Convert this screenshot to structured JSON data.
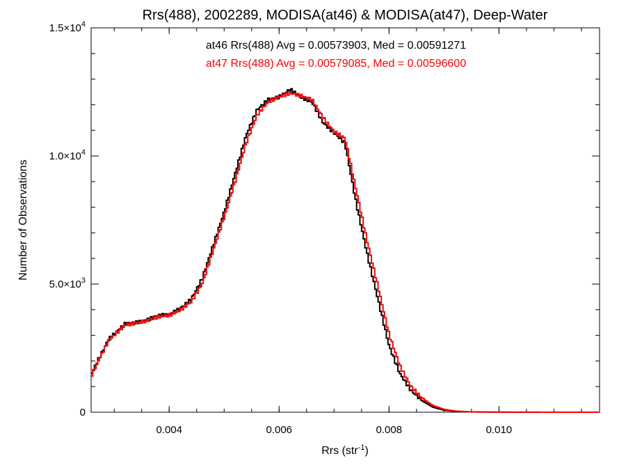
{
  "chart_data": {
    "type": "line",
    "title": "Rrs(488), 2002289, MODISA(at46) & MODISA(at47), Deep-Water",
    "xlabel": "Rrs (str",
    "xlabel_sup": "-1",
    "xlabel_suffix": ")",
    "ylabel": "Number of Observations",
    "xlim": [
      0.00258,
      0.01183
    ],
    "ylim": [
      0,
      15000
    ],
    "grid": false,
    "legend_position": "top-center",
    "x_ticks": [
      {
        "value": 0.004,
        "label": "0.004"
      },
      {
        "value": 0.006,
        "label": "0.006"
      },
      {
        "value": 0.008,
        "label": "0.008"
      },
      {
        "value": 0.01,
        "label": "0.010"
      }
    ],
    "y_ticks": [
      {
        "value": 0,
        "mantissa": "0",
        "exp": ""
      },
      {
        "value": 5000,
        "mantissa": "5.0×10",
        "exp": "3"
      },
      {
        "value": 10000,
        "mantissa": "1.0×10",
        "exp": "4"
      },
      {
        "value": 15000,
        "mantissa": "1.5×10",
        "exp": "4"
      }
    ],
    "series": [
      {
        "name": "at46",
        "color": "#000000",
        "stats": "at46 Rrs(488) Avg = 0.00573903, Med = 0.00591271",
        "points": [
          [
            0.00258,
            1450
          ],
          [
            0.0027,
            2000
          ],
          [
            0.0029,
            2850
          ],
          [
            0.0031,
            3250
          ],
          [
            0.0032,
            3450
          ],
          [
            0.0034,
            3500
          ],
          [
            0.0036,
            3600
          ],
          [
            0.0038,
            3780
          ],
          [
            0.004,
            3800
          ],
          [
            0.0042,
            4050
          ],
          [
            0.0044,
            4400
          ],
          [
            0.0046,
            5200
          ],
          [
            0.0048,
            6500
          ],
          [
            0.005,
            7800
          ],
          [
            0.0052,
            9300
          ],
          [
            0.0054,
            10800
          ],
          [
            0.0056,
            11800
          ],
          [
            0.0058,
            12200
          ],
          [
            0.006,
            12300
          ],
          [
            0.0062,
            12600
          ],
          [
            0.0064,
            12300
          ],
          [
            0.0066,
            12100
          ],
          [
            0.0068,
            11300
          ],
          [
            0.007,
            10900
          ],
          [
            0.0072,
            10500
          ],
          [
            0.0074,
            8200
          ],
          [
            0.0076,
            6200
          ],
          [
            0.0078,
            4400
          ],
          [
            0.008,
            2600
          ],
          [
            0.0082,
            1500
          ],
          [
            0.0084,
            850
          ],
          [
            0.0086,
            450
          ],
          [
            0.0088,
            200
          ],
          [
            0.009,
            80
          ],
          [
            0.0092,
            35
          ],
          [
            0.0095,
            10
          ],
          [
            0.01,
            2
          ],
          [
            0.01183,
            0
          ]
        ]
      },
      {
        "name": "at47",
        "color": "#ff0000",
        "stats": "at47 Rrs(488) Avg = 0.00579085, Med = 0.00596600",
        "points": [
          [
            0.00258,
            1400
          ],
          [
            0.0027,
            1950
          ],
          [
            0.0029,
            2800
          ],
          [
            0.0031,
            3200
          ],
          [
            0.0032,
            3400
          ],
          [
            0.0034,
            3480
          ],
          [
            0.0036,
            3570
          ],
          [
            0.0038,
            3720
          ],
          [
            0.004,
            3780
          ],
          [
            0.0042,
            3980
          ],
          [
            0.0044,
            4300
          ],
          [
            0.0046,
            5000
          ],
          [
            0.0048,
            6300
          ],
          [
            0.005,
            7600
          ],
          [
            0.0052,
            9000
          ],
          [
            0.0054,
            10500
          ],
          [
            0.0056,
            11600
          ],
          [
            0.0058,
            12100
          ],
          [
            0.006,
            12300
          ],
          [
            0.0062,
            12450
          ],
          [
            0.0064,
            12350
          ],
          [
            0.0066,
            12200
          ],
          [
            0.0068,
            11500
          ],
          [
            0.007,
            10950
          ],
          [
            0.0072,
            10700
          ],
          [
            0.0074,
            8700
          ],
          [
            0.0076,
            6700
          ],
          [
            0.0078,
            4900
          ],
          [
            0.008,
            3050
          ],
          [
            0.0082,
            1800
          ],
          [
            0.0084,
            1000
          ],
          [
            0.0086,
            550
          ],
          [
            0.0088,
            260
          ],
          [
            0.009,
            110
          ],
          [
            0.0092,
            45
          ],
          [
            0.0095,
            15
          ],
          [
            0.01,
            3
          ],
          [
            0.01183,
            0
          ]
        ]
      }
    ]
  }
}
